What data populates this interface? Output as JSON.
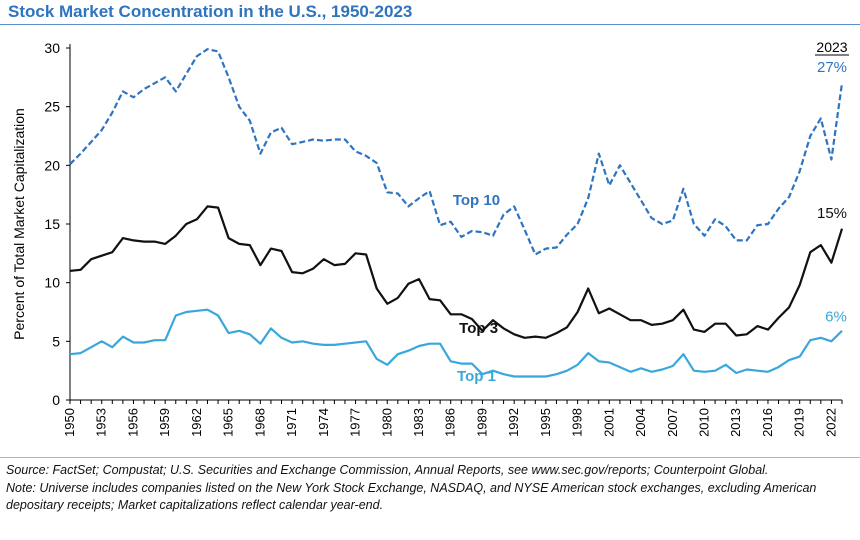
{
  "title": "Stock Market Concentration in the U.S., 1950-2023",
  "source_note": "Source: FactSet; Compustat; U.S. Securities and Exchange Commission, Annual Reports, see www.sec.gov/reports; Counterpoint Global.",
  "universe_note": "Note: Universe includes companies listed on the New York Stock Exchange, NASDAQ, and NYSE American stock exchanges, excluding American depositary receipts; Market capitalizations reflect calendar year-end.",
  "colors": {
    "top10": "#2e74c0",
    "top3": "#111111",
    "top1": "#3aa7dc",
    "title": "#2e74c0"
  },
  "chart_data": {
    "type": "line",
    "title": "",
    "xlabel": "",
    "ylabel": "Percent of Total Market Capitalization",
    "ylim": [
      0,
      30
    ],
    "yticks": [
      0,
      5,
      10,
      15,
      20,
      25,
      30
    ],
    "xlim": [
      1950,
      2023
    ],
    "xticks": [
      "1950",
      "1953",
      "1956",
      "1959",
      "1962",
      "1965",
      "1968",
      "1971",
      "1974",
      "1977",
      "1980",
      "1983",
      "1986",
      "1989",
      "1992",
      "1995",
      "1998",
      "2001",
      "2004",
      "2007",
      "2010",
      "2013",
      "2016",
      "2019",
      "2022"
    ],
    "corner_label": "2023",
    "grid": false,
    "x": [
      1950,
      1951,
      1952,
      1953,
      1954,
      1955,
      1956,
      1957,
      1958,
      1959,
      1960,
      1961,
      1962,
      1963,
      1964,
      1965,
      1966,
      1967,
      1968,
      1969,
      1970,
      1971,
      1972,
      1973,
      1974,
      1975,
      1976,
      1977,
      1978,
      1979,
      1980,
      1981,
      1982,
      1983,
      1984,
      1985,
      1986,
      1987,
      1988,
      1989,
      1990,
      1991,
      1992,
      1993,
      1994,
      1995,
      1996,
      1997,
      1998,
      1999,
      2000,
      2001,
      2002,
      2003,
      2004,
      2005,
      2006,
      2007,
      2008,
      2009,
      2010,
      2011,
      2012,
      2013,
      2014,
      2015,
      2016,
      2017,
      2018,
      2019,
      2020,
      2021,
      2022,
      2023
    ],
    "series": [
      {
        "name": "Top 10",
        "style": "dashed",
        "end_label": "27%",
        "values": [
          20.1,
          21.0,
          22.0,
          23.0,
          24.5,
          26.3,
          25.8,
          26.5,
          27.0,
          27.5,
          26.3,
          27.8,
          29.3,
          29.9,
          29.7,
          27.5,
          25.0,
          23.8,
          21.0,
          22.8,
          23.2,
          21.8,
          22.0,
          22.2,
          22.1,
          22.2,
          22.2,
          21.2,
          20.8,
          20.2,
          17.7,
          17.6,
          16.5,
          17.2,
          17.8,
          14.9,
          15.2,
          13.9,
          14.4,
          14.3,
          14.0,
          15.8,
          16.5,
          14.5,
          12.4,
          12.9,
          13.0,
          14.1,
          15.0,
          17.2,
          21.0,
          18.3,
          20.0,
          18.5,
          17.0,
          15.5,
          15.0,
          15.3,
          18.0,
          15.0,
          14.0,
          15.4,
          14.8,
          13.6,
          13.6,
          14.9,
          15.0,
          16.3,
          17.3,
          19.5,
          22.5,
          24.0,
          20.5,
          27.0
        ]
      },
      {
        "name": "Top 3",
        "style": "solid",
        "end_label": "15%",
        "values": [
          11.0,
          11.1,
          12.0,
          12.3,
          12.6,
          13.8,
          13.6,
          13.5,
          13.5,
          13.3,
          14.0,
          15.0,
          15.4,
          16.5,
          16.4,
          13.8,
          13.3,
          13.2,
          11.5,
          12.9,
          12.7,
          10.9,
          10.8,
          11.2,
          12.0,
          11.5,
          11.6,
          12.5,
          12.4,
          9.5,
          8.2,
          8.7,
          9.9,
          10.3,
          8.6,
          8.5,
          7.3,
          7.3,
          6.9,
          5.9,
          6.8,
          6.1,
          5.6,
          5.3,
          5.4,
          5.3,
          5.7,
          6.2,
          7.5,
          9.5,
          7.4,
          7.8,
          7.3,
          6.8,
          6.8,
          6.4,
          6.5,
          6.8,
          7.7,
          6.0,
          5.8,
          6.5,
          6.5,
          5.5,
          5.6,
          6.3,
          6.0,
          7.0,
          7.9,
          9.8,
          12.6,
          13.2,
          11.7,
          14.6
        ]
      },
      {
        "name": "Top 1",
        "style": "solid",
        "end_label": "6%",
        "values": [
          3.9,
          4.0,
          4.5,
          5.0,
          4.5,
          5.4,
          4.9,
          4.9,
          5.1,
          5.1,
          7.2,
          7.5,
          7.6,
          7.7,
          7.2,
          5.7,
          5.9,
          5.6,
          4.8,
          6.1,
          5.3,
          4.9,
          5.0,
          4.8,
          4.7,
          4.7,
          4.8,
          4.9,
          5.0,
          3.5,
          3.0,
          3.9,
          4.2,
          4.6,
          4.8,
          4.8,
          3.3,
          3.1,
          3.1,
          2.2,
          2.5,
          2.2,
          2.0,
          2.0,
          2.0,
          2.0,
          2.2,
          2.5,
          3.0,
          4.0,
          3.3,
          3.2,
          2.8,
          2.4,
          2.7,
          2.4,
          2.6,
          2.9,
          3.9,
          2.5,
          2.4,
          2.5,
          3.0,
          2.3,
          2.6,
          2.5,
          2.4,
          2.8,
          3.4,
          3.7,
          5.1,
          5.3,
          5.0,
          5.9
        ]
      }
    ]
  }
}
